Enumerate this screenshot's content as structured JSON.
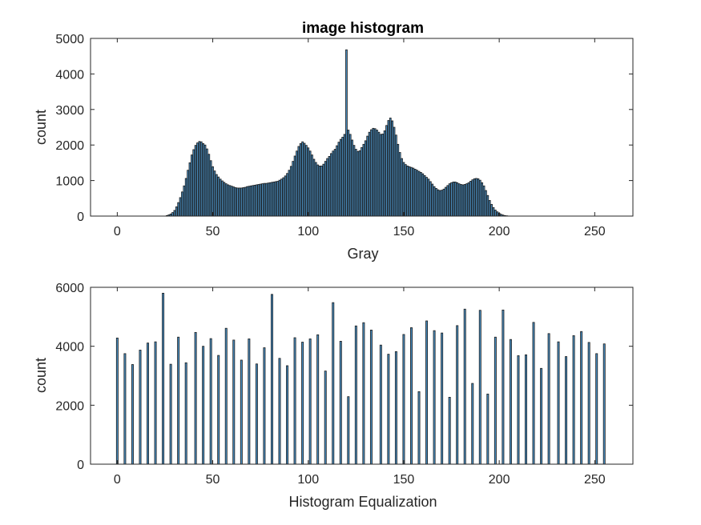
{
  "figure": {
    "bar_color": "#4a90c4",
    "edge_color": "#1a1a1a"
  },
  "chart_data": [
    {
      "type": "bar",
      "title": "image histogram",
      "xlabel": "Gray",
      "ylabel": "count",
      "xlim": [
        -14,
        270
      ],
      "ylim": [
        0,
        5000
      ],
      "xticks": [
        0,
        50,
        100,
        150,
        200,
        250
      ],
      "yticks": [
        0,
        1000,
        2000,
        3000,
        4000,
        5000
      ],
      "grid": false,
      "x_start": 0,
      "values": [
        0,
        0,
        0,
        0,
        0,
        0,
        0,
        0,
        0,
        0,
        0,
        0,
        0,
        0,
        0,
        0,
        0,
        0,
        0,
        0,
        0,
        0,
        0,
        0,
        0,
        0,
        15,
        35,
        60,
        100,
        160,
        260,
        380,
        520,
        680,
        850,
        1060,
        1290,
        1500,
        1720,
        1870,
        1990,
        2060,
        2100,
        2090,
        2040,
        2000,
        1890,
        1740,
        1560,
        1390,
        1270,
        1170,
        1100,
        1040,
        990,
        950,
        910,
        880,
        860,
        840,
        820,
        800,
        790,
        790,
        790,
        800,
        810,
        830,
        840,
        850,
        860,
        870,
        880,
        890,
        900,
        910,
        920,
        920,
        930,
        940,
        950,
        960,
        970,
        980,
        1010,
        1040,
        1080,
        1130,
        1200,
        1290,
        1400,
        1540,
        1690,
        1830,
        1960,
        2040,
        2090,
        2050,
        1990,
        1920,
        1830,
        1720,
        1600,
        1510,
        1440,
        1410,
        1410,
        1460,
        1540,
        1620,
        1680,
        1760,
        1830,
        1880,
        1980,
        2080,
        2160,
        2220,
        2300,
        4680,
        2420,
        2300,
        2140,
        1990,
        1880,
        1820,
        1840,
        1930,
        2020,
        2120,
        2250,
        2360,
        2430,
        2470,
        2460,
        2420,
        2360,
        2300,
        2310,
        2400,
        2550,
        2690,
        2760,
        2680,
        2500,
        2280,
        2020,
        1790,
        1620,
        1510,
        1450,
        1410,
        1390,
        1370,
        1350,
        1320,
        1290,
        1260,
        1230,
        1190,
        1140,
        1090,
        1040,
        970,
        900,
        830,
        780,
        740,
        720,
        730,
        760,
        810,
        860,
        910,
        940,
        960,
        960,
        940,
        910,
        890,
        880,
        890,
        910,
        940,
        980,
        1020,
        1050,
        1060,
        1050,
        1010,
        940,
        850,
        720,
        580,
        440,
        330,
        240,
        170,
        120,
        80,
        50,
        30,
        15,
        8,
        3,
        0,
        0,
        0,
        0,
        0,
        0,
        0,
        0,
        0,
        0,
        0,
        0,
        0,
        0,
        0,
        0,
        0,
        0,
        0,
        0,
        0,
        0,
        0,
        0,
        0,
        0,
        0,
        0,
        0,
        0,
        0,
        0,
        0,
        0,
        0,
        0,
        0,
        0,
        0,
        0,
        0,
        0,
        0,
        0,
        0,
        0,
        0,
        0,
        0,
        0,
        0
      ]
    },
    {
      "type": "bar",
      "title": "",
      "xlabel": "Histogram Equalization",
      "ylabel": "count",
      "xlim": [
        -14,
        270
      ],
      "ylim": [
        0,
        6000
      ],
      "xticks": [
        0,
        50,
        100,
        150,
        200,
        250
      ],
      "yticks": [
        0,
        2000,
        4000,
        6000
      ],
      "grid": false,
      "x": [
        0,
        4,
        8,
        12,
        16,
        20,
        24,
        28,
        32,
        36,
        41,
        45,
        49,
        53,
        57,
        61,
        65,
        69,
        73,
        77,
        81,
        85,
        89,
        93,
        97,
        101,
        105,
        109,
        113,
        117,
        121,
        125,
        129,
        133,
        138,
        142,
        146,
        150,
        154,
        158,
        162,
        166,
        170,
        174,
        178,
        182,
        186,
        190,
        194,
        198,
        202,
        206,
        210,
        214,
        218,
        222,
        226,
        231,
        235,
        239,
        243,
        247,
        251,
        255
      ],
      "values": [
        4280,
        3750,
        3380,
        3870,
        4110,
        4150,
        5800,
        3390,
        4310,
        3440,
        4470,
        4000,
        4260,
        3690,
        4610,
        4210,
        3530,
        4250,
        3400,
        3950,
        5760,
        3590,
        3340,
        4290,
        4140,
        4250,
        4390,
        3160,
        5480,
        4170,
        2290,
        4690,
        4800,
        4550,
        4040,
        3730,
        3820,
        4400,
        4630,
        2460,
        4860,
        4530,
        4450,
        2270,
        4700,
        5260,
        2740,
        5220,
        2380,
        4310,
        5230,
        4230,
        3680,
        3710,
        4810,
        3250,
        4430,
        4150,
        3650,
        4360,
        4500,
        4130,
        3750,
        4080
      ]
    }
  ]
}
